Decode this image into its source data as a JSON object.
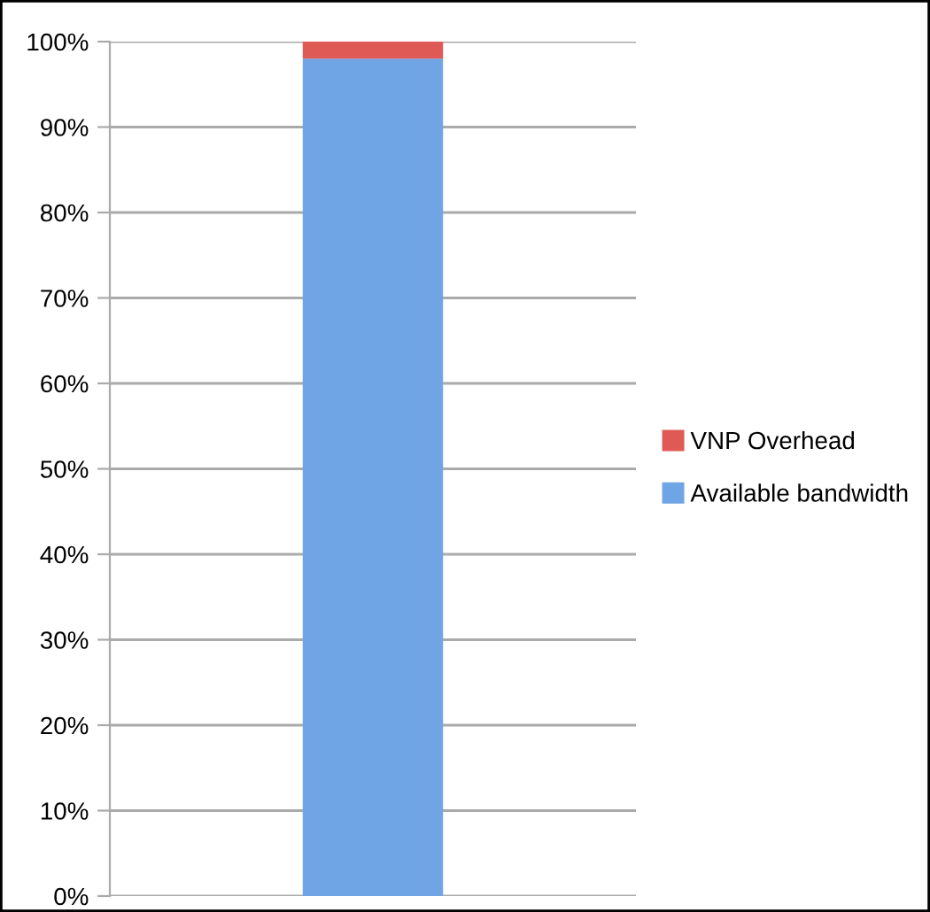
{
  "chart_data": {
    "type": "bar",
    "stacked": true,
    "categories": [
      null
    ],
    "series": [
      {
        "name": "Available bandwidth",
        "color": "#6fa5e4",
        "values": [
          98
        ]
      },
      {
        "name": "VNP Overhead",
        "color": "#e05a55",
        "values": [
          2
        ]
      }
    ],
    "ylim": [
      0,
      100
    ],
    "yticks": [
      {
        "value": 0,
        "label": "0%"
      },
      {
        "value": 10,
        "label": "10%"
      },
      {
        "value": 20,
        "label": "20%"
      },
      {
        "value": 30,
        "label": "30%"
      },
      {
        "value": 40,
        "label": "40%"
      },
      {
        "value": 50,
        "label": "50%"
      },
      {
        "value": 60,
        "label": "60%"
      },
      {
        "value": 70,
        "label": "70%"
      },
      {
        "value": 80,
        "label": "80%"
      },
      {
        "value": 90,
        "label": "90%"
      },
      {
        "value": 100,
        "label": "100%"
      }
    ],
    "grid": "y",
    "legend": "right"
  }
}
